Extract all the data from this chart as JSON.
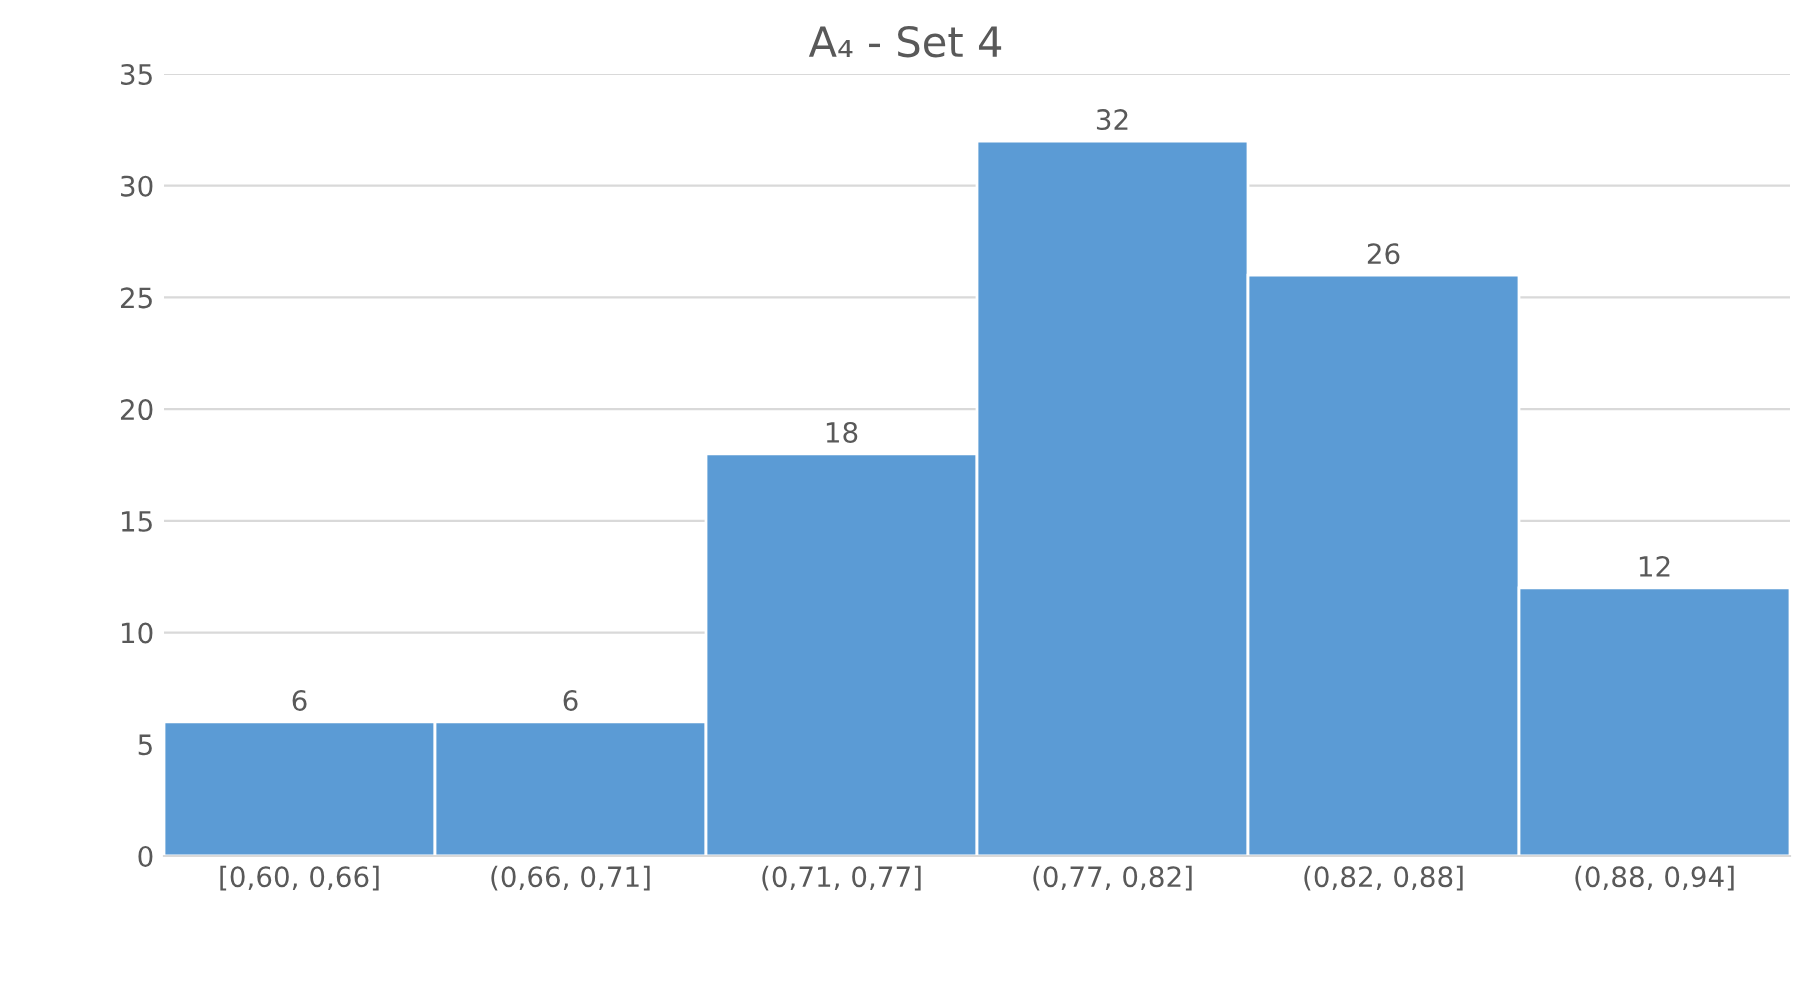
{
  "chart_data": {
    "type": "bar",
    "title": "A₄ - Set 4",
    "categories": [
      "[0,60, 0,66]",
      "(0,66, 0,71]",
      "(0,71, 0,77]",
      "(0,77, 0,82]",
      "(0,82, 0,88]",
      "(0,88, 0,94]"
    ],
    "values": [
      6,
      6,
      18,
      32,
      26,
      12
    ],
    "color": "#5b9bd5",
    "ylim": [
      0,
      35
    ],
    "yticks": [
      0,
      5,
      10,
      15,
      20,
      25,
      30,
      35
    ],
    "grid": "y",
    "data_labels": true
  }
}
